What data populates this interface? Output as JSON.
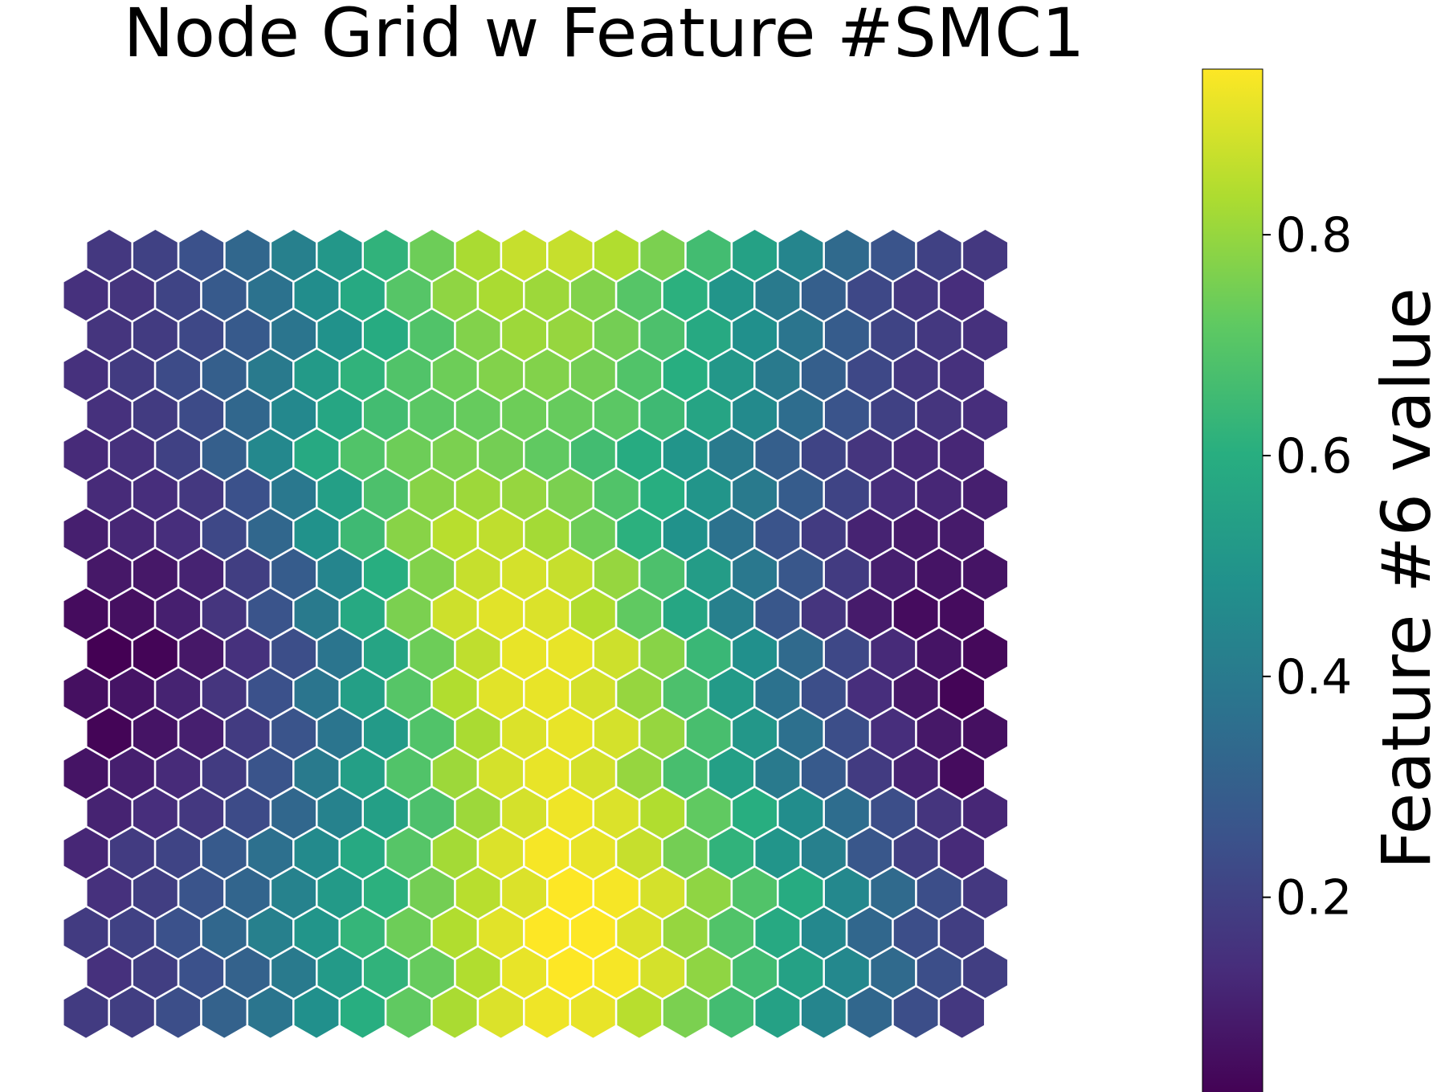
{
  "chart_data": {
    "type": "heatmap",
    "grid": "hexagonal",
    "title": "Node Grid w Feature #SMC1",
    "colormap": "viridis",
    "rows": 20,
    "cols": 20,
    "row_order": "bottom-to-top",
    "row_offset": "even rows from bottom shifted left, odd rows shifted right",
    "value_range": [
      0.02,
      0.95
    ],
    "values": [
      [
        0.18,
        0.19,
        0.24,
        0.31,
        0.38,
        0.48,
        0.6,
        0.72,
        0.83,
        0.9,
        0.93,
        0.92,
        0.85,
        0.76,
        0.66,
        0.55,
        0.44,
        0.33,
        0.24,
        0.17
      ],
      [
        0.15,
        0.19,
        0.25,
        0.31,
        0.4,
        0.52,
        0.62,
        0.73,
        0.84,
        0.92,
        0.95,
        0.94,
        0.89,
        0.79,
        0.66,
        0.55,
        0.45,
        0.34,
        0.24,
        0.19
      ],
      [
        0.18,
        0.2,
        0.25,
        0.33,
        0.42,
        0.5,
        0.63,
        0.74,
        0.84,
        0.91,
        0.95,
        0.95,
        0.9,
        0.8,
        0.69,
        0.58,
        0.45,
        0.33,
        0.24,
        0.19
      ],
      [
        0.15,
        0.19,
        0.26,
        0.32,
        0.43,
        0.52,
        0.61,
        0.75,
        0.85,
        0.9,
        0.95,
        0.94,
        0.89,
        0.79,
        0.69,
        0.59,
        0.45,
        0.34,
        0.24,
        0.17
      ],
      [
        0.12,
        0.18,
        0.21,
        0.28,
        0.36,
        0.46,
        0.58,
        0.7,
        0.82,
        0.9,
        0.94,
        0.92,
        0.87,
        0.75,
        0.62,
        0.5,
        0.42,
        0.27,
        0.19,
        0.13
      ],
      [
        0.11,
        0.14,
        0.17,
        0.23,
        0.33,
        0.43,
        0.54,
        0.68,
        0.81,
        0.89,
        0.93,
        0.9,
        0.84,
        0.72,
        0.6,
        0.47,
        0.35,
        0.24,
        0.16,
        0.12
      ],
      [
        0.07,
        0.1,
        0.13,
        0.18,
        0.26,
        0.4,
        0.54,
        0.69,
        0.81,
        0.89,
        0.92,
        0.89,
        0.8,
        0.67,
        0.54,
        0.4,
        0.28,
        0.18,
        0.11,
        0.05
      ],
      [
        0.03,
        0.07,
        0.1,
        0.18,
        0.26,
        0.38,
        0.52,
        0.69,
        0.83,
        0.9,
        0.92,
        0.89,
        0.8,
        0.67,
        0.51,
        0.36,
        0.24,
        0.14,
        0.08,
        0.06
      ],
      [
        0.06,
        0.07,
        0.11,
        0.16,
        0.25,
        0.38,
        0.54,
        0.7,
        0.84,
        0.91,
        0.92,
        0.89,
        0.8,
        0.68,
        0.52,
        0.37,
        0.24,
        0.14,
        0.08,
        0.03
      ],
      [
        0.02,
        0.03,
        0.08,
        0.15,
        0.24,
        0.38,
        0.56,
        0.74,
        0.86,
        0.92,
        0.92,
        0.88,
        0.78,
        0.64,
        0.48,
        0.34,
        0.22,
        0.13,
        0.07,
        0.04
      ],
      [
        0.05,
        0.06,
        0.1,
        0.16,
        0.26,
        0.4,
        0.58,
        0.76,
        0.88,
        0.91,
        0.9,
        0.84,
        0.72,
        0.57,
        0.42,
        0.27,
        0.16,
        0.09,
        0.05,
        0.05
      ],
      [
        0.08,
        0.08,
        0.11,
        0.19,
        0.29,
        0.44,
        0.6,
        0.77,
        0.87,
        0.89,
        0.87,
        0.8,
        0.68,
        0.53,
        0.39,
        0.27,
        0.18,
        0.1,
        0.07,
        0.07
      ],
      [
        0.1,
        0.12,
        0.14,
        0.22,
        0.33,
        0.49,
        0.65,
        0.78,
        0.85,
        0.86,
        0.82,
        0.74,
        0.61,
        0.49,
        0.37,
        0.26,
        0.18,
        0.11,
        0.09,
        0.09
      ],
      [
        0.13,
        0.14,
        0.17,
        0.25,
        0.39,
        0.54,
        0.68,
        0.78,
        0.81,
        0.8,
        0.76,
        0.69,
        0.6,
        0.5,
        0.4,
        0.29,
        0.21,
        0.14,
        0.12,
        0.1
      ],
      [
        0.13,
        0.15,
        0.2,
        0.3,
        0.45,
        0.58,
        0.69,
        0.74,
        0.76,
        0.75,
        0.72,
        0.66,
        0.59,
        0.5,
        0.4,
        0.3,
        0.21,
        0.16,
        0.13,
        0.12
      ],
      [
        0.15,
        0.18,
        0.23,
        0.33,
        0.45,
        0.57,
        0.66,
        0.71,
        0.73,
        0.74,
        0.73,
        0.71,
        0.65,
        0.56,
        0.46,
        0.35,
        0.26,
        0.2,
        0.16,
        0.14
      ],
      [
        0.15,
        0.18,
        0.23,
        0.3,
        0.4,
        0.52,
        0.62,
        0.69,
        0.74,
        0.77,
        0.77,
        0.75,
        0.69,
        0.6,
        0.51,
        0.4,
        0.3,
        0.22,
        0.17,
        0.15
      ],
      [
        0.16,
        0.18,
        0.22,
        0.28,
        0.38,
        0.49,
        0.59,
        0.69,
        0.77,
        0.81,
        0.8,
        0.75,
        0.68,
        0.58,
        0.48,
        0.38,
        0.29,
        0.21,
        0.17,
        0.15
      ],
      [
        0.15,
        0.16,
        0.21,
        0.28,
        0.37,
        0.47,
        0.58,
        0.7,
        0.79,
        0.83,
        0.81,
        0.77,
        0.7,
        0.61,
        0.5,
        0.4,
        0.3,
        0.22,
        0.17,
        0.14
      ],
      [
        0.17,
        0.2,
        0.25,
        0.33,
        0.42,
        0.51,
        0.62,
        0.74,
        0.83,
        0.87,
        0.87,
        0.84,
        0.76,
        0.66,
        0.55,
        0.44,
        0.34,
        0.26,
        0.2,
        0.17
      ]
    ],
    "colorbar": {
      "label": "Feature #6 value",
      "ticks": [
        0.2,
        0.4,
        0.6,
        0.8
      ],
      "tick_labels": [
        "0.2",
        "0.4",
        "0.6",
        "0.8"
      ]
    }
  }
}
